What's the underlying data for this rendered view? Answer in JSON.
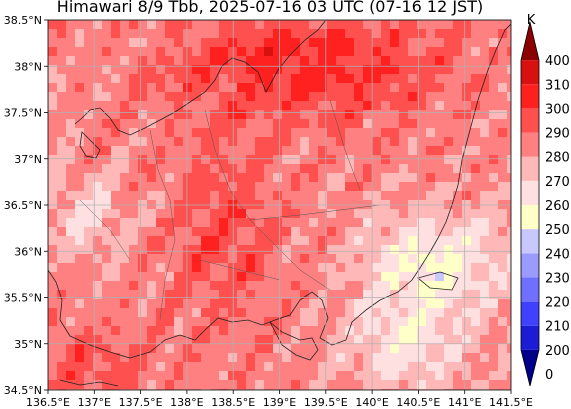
{
  "title": "Himawari 8/9 Tbb, 2025-07-16 03 UTC (07-16 12 JST)",
  "map": {
    "lon_range": [
      136.5,
      141.5
    ],
    "lat_range": [
      34.5,
      38.5
    ],
    "lon_ticks": [
      "136.5°E",
      "137°E",
      "137.5°E",
      "138°E",
      "138.5°E",
      "139°E",
      "139.5°E",
      "140°E",
      "140.5°E",
      "141°E",
      "141.5°E"
    ],
    "lat_ticks": [
      "34.5°N",
      "35°N",
      "35.5°N",
      "36°N",
      "36.5°N",
      "37°N",
      "37.5°N",
      "38°N",
      "38.5°N"
    ],
    "grid": true,
    "variable": "Brightness temperature (Tbb)"
  },
  "colorbar": {
    "unit": "K",
    "levels": [
      "0",
      "200",
      "210",
      "220",
      "230",
      "240",
      "250",
      "260",
      "270",
      "280",
      "290",
      "300",
      "310",
      "400"
    ],
    "colors": [
      "#00008b",
      "#1c1cd6",
      "#4040ff",
      "#7070ff",
      "#9a9aff",
      "#c8c8ff",
      "#ffffc8",
      "#ffe0e0",
      "#ffb8b8",
      "#ff8080",
      "#ff5050",
      "#ff2020",
      "#d81010",
      "#8b0000"
    ]
  }
}
